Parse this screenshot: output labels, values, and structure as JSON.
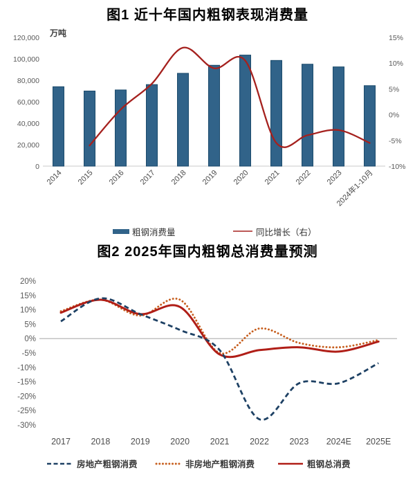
{
  "colors": {
    "bar_fill": "#316389",
    "bar_border": "#1B4A6B",
    "red_line": "#A5211E",
    "red_solid": "#B01E17",
    "navy_dashed": "#1E4164",
    "orange_dotted": "#C75F1F",
    "axis_text": "#595959",
    "x_label_text": "#4A4A4A",
    "zero_line": "#BDBDBD",
    "baseline": "#C9C9C9"
  },
  "chart_data": [
    {
      "type": "bar",
      "title": "图1  近十年国内粗钢表现消费量",
      "ylabel": "万吨",
      "categories": [
        "2014",
        "2015",
        "2016",
        "2017",
        "2018",
        "2019",
        "2020",
        "2021",
        "2022",
        "2023",
        "2024年1-10月"
      ],
      "series": [
        {
          "name": "粗钢消费量",
          "kind": "bar",
          "axis": "left",
          "values": [
            74000,
            70000,
            71000,
            76000,
            86500,
            94000,
            103500,
            98500,
            95000,
            92500,
            75000
          ]
        },
        {
          "name": "同比增长（右）",
          "kind": "line",
          "axis": "right",
          "values": [
            null,
            -6,
            1,
            6,
            13,
            9,
            10.5,
            -5.5,
            -4,
            -3,
            -5.5
          ]
        }
      ],
      "left_axis": {
        "min": 0,
        "max": 120000,
        "step": 20000,
        "format": "thousands"
      },
      "right_axis": {
        "min": -10,
        "max": 15,
        "step": 5,
        "format": "percent"
      },
      "grid": "off",
      "legend_position": "bottom"
    },
    {
      "type": "line",
      "title": "图2  2025年国内粗钢总消费量预测",
      "categories": [
        "2017",
        "2018",
        "2019",
        "2020",
        "2021",
        "2022",
        "2023",
        "2024E",
        "2025E"
      ],
      "series": [
        {
          "name": "房地产粗钢消费",
          "style": "dashed",
          "color_key": "navy_dashed",
          "values": [
            6,
            14,
            8.5,
            3,
            -4,
            -28,
            -15.5,
            -15.5,
            -8.5
          ]
        },
        {
          "name": "非房地产粗钢消费",
          "style": "dotted",
          "color_key": "orange_dotted",
          "values": [
            9.5,
            13.5,
            8,
            13.5,
            -5,
            3.5,
            -1.5,
            -3,
            -0.5
          ]
        },
        {
          "name": "粗钢总消费",
          "style": "solid",
          "color_key": "red_solid",
          "values": [
            9,
            13.5,
            8.5,
            11,
            -5.5,
            -4,
            -3,
            -4.5,
            -1
          ]
        }
      ],
      "y_axis": {
        "min": -30,
        "max": 20,
        "step": 5,
        "format": "percent"
      },
      "zero_line": true,
      "grid": "off",
      "legend_position": "bottom"
    }
  ]
}
